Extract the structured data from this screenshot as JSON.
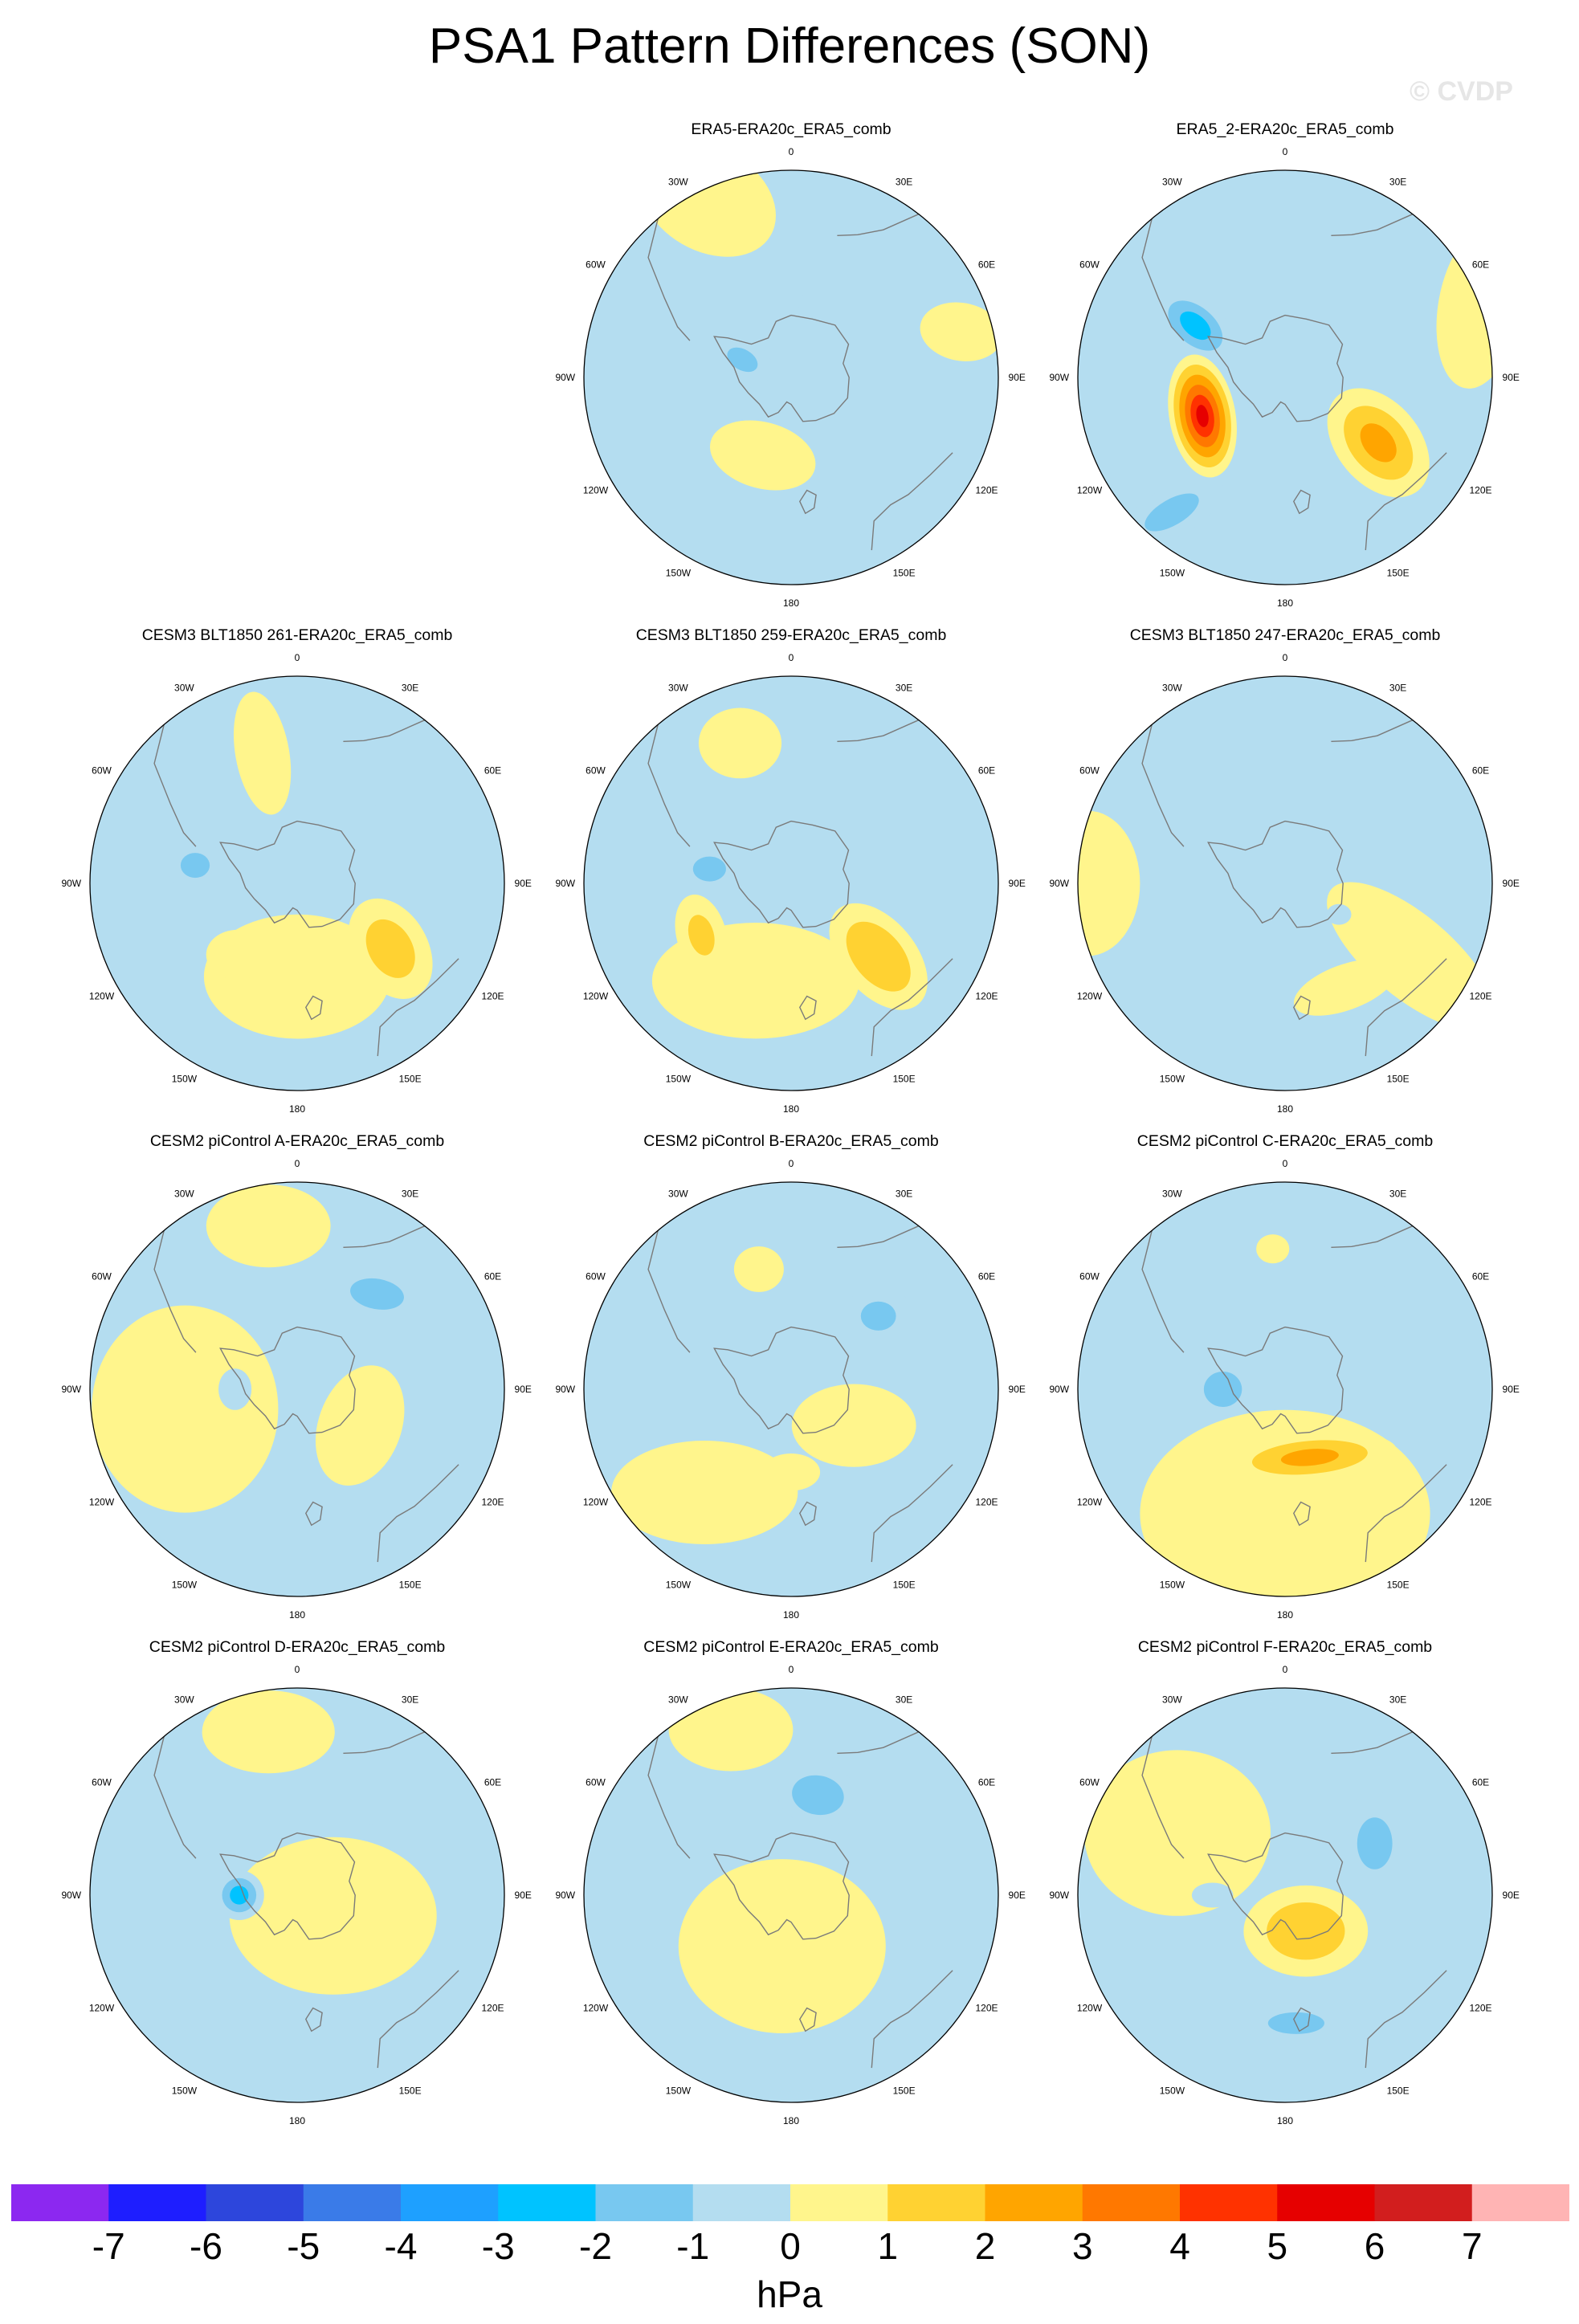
{
  "title": "PSA1 Pattern Differences (SON)",
  "watermark": "© CVDP",
  "colors": {
    "neg7": "#8c28f0",
    "neg6": "#1e1eff",
    "neg5": "#2d46dc",
    "neg4": "#3a7be8",
    "neg3": "#1ea0ff",
    "neg2": "#00c3ff",
    "neg1": "#78c8f0",
    "zero_neg": "#b4ddf0",
    "zero_pos": "#fff58c",
    "pos1": "#ffd232",
    "pos2": "#ffa500",
    "pos3": "#ff7800",
    "pos4": "#ff3200",
    "pos5": "#e60000",
    "pos6": "#d21e1e",
    "pos7": "#ffb4b4",
    "coast": "#7a7a7a"
  },
  "lon_labels": [
    "0",
    "30E",
    "60E",
    "90E",
    "120E",
    "150E",
    "180",
    "150W",
    "120W",
    "90W",
    "60W",
    "30W"
  ],
  "panels": [
    {
      "title": "ERA5-ERA20c_ERA5_comb",
      "blobs": [
        {
          "lon": 75,
          "r": 0.85,
          "rx": 0.2,
          "ry": 0.14,
          "rot": 10,
          "level": 0.7
        },
        {
          "lon": -160,
          "r": 0.4,
          "rx": 0.26,
          "ry": 0.16,
          "rot": 15,
          "level": 1.4
        },
        {
          "lon": -70,
          "r": 0.25,
          "rx": 0.16,
          "ry": 0.1,
          "rot": 30,
          "level": -1.5
        },
        {
          "lon": 18,
          "r": 0.38,
          "rx": 0.09,
          "ry": 0.05,
          "rot": 0,
          "level": -1.2
        },
        {
          "lon": 170,
          "r": 0.62,
          "rx": 0.08,
          "ry": 0.04,
          "rot": 0,
          "level": -1.2
        },
        {
          "lon": -25,
          "r": 0.95,
          "rx": 0.35,
          "ry": 0.25,
          "rot": 30,
          "level": 0.6
        }
      ]
    },
    {
      "title": "ERA5_2-ERA20c_ERA5_comb",
      "blobs": [
        {
          "lon": -115,
          "r": 0.44,
          "rx": 0.3,
          "ry": 0.16,
          "rot": 80,
          "level": 5.6
        },
        {
          "lon": -60,
          "r": 0.5,
          "rx": 0.22,
          "ry": 0.13,
          "rot": 40,
          "level": -2.8
        },
        {
          "lon": -140,
          "r": 0.85,
          "rx": 0.28,
          "ry": 0.12,
          "rot": -30,
          "level": -1.6
        },
        {
          "lon": 125,
          "r": 0.55,
          "rx": 0.3,
          "ry": 0.2,
          "rot": 50,
          "level": 2.6
        },
        {
          "lon": 70,
          "r": 1.0,
          "rx": 0.2,
          "ry": 0.4,
          "rot": 10,
          "level": 0.6
        }
      ]
    },
    {
      "title": "CESM3 BLT1850 261-ERA20c_ERA5_comb",
      "blobs": [
        {
          "lon": 125,
          "r": 0.55,
          "rx": 0.26,
          "ry": 0.18,
          "rot": 60,
          "level": 1.9
        },
        {
          "lon": -140,
          "r": 0.45,
          "rx": 0.15,
          "ry": 0.12,
          "rot": 0,
          "level": 1.3
        },
        {
          "lon": -80,
          "r": 0.5,
          "rx": 0.14,
          "ry": 0.12,
          "rot": 0,
          "level": -1.5
        },
        {
          "lon": 50,
          "r": 0.45,
          "rx": 0.12,
          "ry": 0.09,
          "rot": 0,
          "level": -1.4
        },
        {
          "lon": -15,
          "r": 0.65,
          "rx": 0.3,
          "ry": 0.13,
          "rot": 80,
          "level": 0.7
        },
        {
          "lon": 180,
          "r": 0.45,
          "rx": 0.45,
          "ry": 0.3,
          "rot": 0,
          "level": 0.6
        }
      ]
    },
    {
      "title": "CESM3 BLT1850 259-ERA20c_ERA5_comb",
      "blobs": [
        {
          "lon": 130,
          "r": 0.55,
          "rx": 0.3,
          "ry": 0.18,
          "rot": 50,
          "level": 2.4
        },
        {
          "lon": -120,
          "r": 0.5,
          "rx": 0.2,
          "ry": 0.12,
          "rot": 75,
          "level": 1.5
        },
        {
          "lon": -80,
          "r": 0.4,
          "rx": 0.16,
          "ry": 0.12,
          "rot": 0,
          "level": -1.5
        },
        {
          "lon": -20,
          "r": 0.72,
          "rx": 0.2,
          "ry": 0.17,
          "rot": 0,
          "level": 0.8
        },
        {
          "lon": -160,
          "r": 0.5,
          "rx": 0.5,
          "ry": 0.28,
          "rot": 0,
          "level": 0.6
        }
      ]
    },
    {
      "title": "CESM3 BLT1850 247-ERA20c_ERA5_comb",
      "blobs": [
        {
          "lon": 150,
          "r": 0.58,
          "rx": 0.26,
          "ry": 0.11,
          "rot": -20,
          "level": 1.3
        },
        {
          "lon": 35,
          "r": 0.35,
          "rx": 0.08,
          "ry": 0.07,
          "rot": 0,
          "level": -1.3
        },
        {
          "lon": 120,
          "r": 0.3,
          "rx": 0.06,
          "ry": 0.05,
          "rot": 0,
          "level": -1.2
        },
        {
          "lon": 120,
          "r": 0.7,
          "rx": 0.5,
          "ry": 0.2,
          "rot": 40,
          "level": 0.6
        },
        {
          "lon": -90,
          "r": 0.95,
          "rx": 0.25,
          "ry": 0.35,
          "rot": 0,
          "level": 0.6
        }
      ]
    },
    {
      "title": "CESM2 piControl A-ERA20c_ERA5_comb",
      "blobs": [
        {
          "lon": 40,
          "r": 0.6,
          "rx": 0.25,
          "ry": 0.14,
          "rot": 10,
          "level": -1.6
        },
        {
          "lon": -90,
          "r": 0.3,
          "rx": 0.08,
          "ry": 0.1,
          "rot": 0,
          "level": -1.3
        },
        {
          "lon": -100,
          "r": 0.55,
          "rx": 0.45,
          "ry": 0.5,
          "rot": 0,
          "level": 0.6
        },
        {
          "lon": 120,
          "r": 0.35,
          "rx": 0.2,
          "ry": 0.3,
          "rot": 20,
          "level": 0.6
        },
        {
          "lon": -10,
          "r": 0.8,
          "rx": 0.3,
          "ry": 0.2,
          "rot": 0,
          "level": 0.6
        }
      ]
    },
    {
      "title": "CESM2 piControl B-ERA20c_ERA5_comb",
      "blobs": [
        {
          "lon": -15,
          "r": 0.6,
          "rx": 0.12,
          "ry": 0.11,
          "rot": 0,
          "level": 1.3
        },
        {
          "lon": 180,
          "r": 0.4,
          "rx": 0.14,
          "ry": 0.09,
          "rot": 0,
          "level": 1.3
        },
        {
          "lon": 50,
          "r": 0.55,
          "rx": 0.17,
          "ry": 0.14,
          "rot": 0,
          "level": -1.5
        },
        {
          "lon": -90,
          "r": 0.12,
          "rx": 0.11,
          "ry": 0.09,
          "rot": 0,
          "level": -1.3
        },
        {
          "lon": -140,
          "r": 0.65,
          "rx": 0.45,
          "ry": 0.25,
          "rot": 0,
          "level": 0.6
        },
        {
          "lon": 120,
          "r": 0.35,
          "rx": 0.3,
          "ry": 0.2,
          "rot": 0,
          "level": 0.6
        }
      ]
    },
    {
      "title": "CESM2 piControl C-ERA20c_ERA5_comb",
      "blobs": [
        {
          "lon": 160,
          "r": 0.35,
          "rx": 0.42,
          "ry": 0.12,
          "rot": -5,
          "level": 2.5
        },
        {
          "lon": -90,
          "r": 0.3,
          "rx": 0.14,
          "ry": 0.13,
          "rot": 0,
          "level": -2.4
        },
        {
          "lon": 40,
          "r": 0.55,
          "rx": 0.2,
          "ry": 0.1,
          "rot": 0,
          "level": -1.4
        },
        {
          "lon": -5,
          "r": 0.68,
          "rx": 0.08,
          "ry": 0.07,
          "rot": 0,
          "level": 1.3
        },
        {
          "lon": 180,
          "r": 0.6,
          "rx": 0.7,
          "ry": 0.5,
          "rot": 0,
          "level": 0.6
        }
      ]
    },
    {
      "title": "CESM2 piControl D-ERA20c_ERA5_comb",
      "blobs": [
        {
          "lon": -90,
          "r": 0.28,
          "rx": 0.12,
          "ry": 0.12,
          "rot": 0,
          "level": -2.7
        },
        {
          "lon": -20,
          "r": 0.7,
          "rx": 0.05,
          "ry": 0.05,
          "rot": 0,
          "level": 1.3
        },
        {
          "lon": 40,
          "r": 0.5,
          "rx": 0.07,
          "ry": 0.05,
          "rot": 0,
          "level": -1.2
        },
        {
          "lon": 170,
          "r": 0.2,
          "rx": 0.05,
          "ry": 0.04,
          "rot": 0,
          "level": 1.3
        },
        {
          "lon": 120,
          "r": 0.2,
          "rx": 0.5,
          "ry": 0.38,
          "rot": 0,
          "level": 0.6
        },
        {
          "lon": -10,
          "r": 0.8,
          "rx": 0.32,
          "ry": 0.2,
          "rot": 0,
          "level": 0.6
        }
      ]
    },
    {
      "title": "CESM2 piControl E-ERA20c_ERA5_comb",
      "blobs": [
        {
          "lon": 15,
          "r": 0.5,
          "rx": 0.2,
          "ry": 0.15,
          "rot": 10,
          "level": -2.2
        },
        {
          "lon": -150,
          "r": 0.35,
          "rx": 0.07,
          "ry": 0.13,
          "rot": 0,
          "level": 1.3
        },
        {
          "lon": 150,
          "r": 0.2,
          "rx": 0.06,
          "ry": 0.08,
          "rot": 0,
          "level": 1.3
        },
        {
          "lon": -170,
          "r": 0.25,
          "rx": 0.5,
          "ry": 0.42,
          "rot": 0,
          "level": 0.6
        },
        {
          "lon": -20,
          "r": 0.85,
          "rx": 0.3,
          "ry": 0.2,
          "rot": 0,
          "level": 0.6
        }
      ]
    },
    {
      "title": "CESM2 piControl F-ERA20c_ERA5_comb",
      "blobs": [
        {
          "lon": 150,
          "r": 0.2,
          "rx": 0.3,
          "ry": 0.22,
          "rot": 0,
          "level": 2.2
        },
        {
          "lon": 60,
          "r": 0.5,
          "rx": 0.17,
          "ry": 0.25,
          "rot": 0,
          "level": -1.5
        },
        {
          "lon": 175,
          "r": 0.62,
          "rx": 0.26,
          "ry": 0.1,
          "rot": 0,
          "level": -1.6
        },
        {
          "lon": -90,
          "r": 0.35,
          "rx": 0.1,
          "ry": 0.06,
          "rot": 0,
          "level": -1.4
        },
        {
          "lon": -60,
          "r": 0.6,
          "rx": 0.45,
          "ry": 0.4,
          "rot": 0,
          "level": 0.6
        }
      ]
    }
  ],
  "colorbar": {
    "labels": [
      "-7",
      "-6",
      "-5",
      "-4",
      "-3",
      "-2",
      "-1",
      "0",
      "1",
      "2",
      "3",
      "4",
      "5",
      "6",
      "7"
    ],
    "bins": [
      "neg7",
      "neg6",
      "neg5",
      "neg4",
      "neg3",
      "neg2",
      "neg1",
      "zero_neg",
      "zero_pos",
      "pos1",
      "pos2",
      "pos3",
      "pos4",
      "pos5",
      "pos6",
      "pos7"
    ],
    "unit": "hPa"
  }
}
